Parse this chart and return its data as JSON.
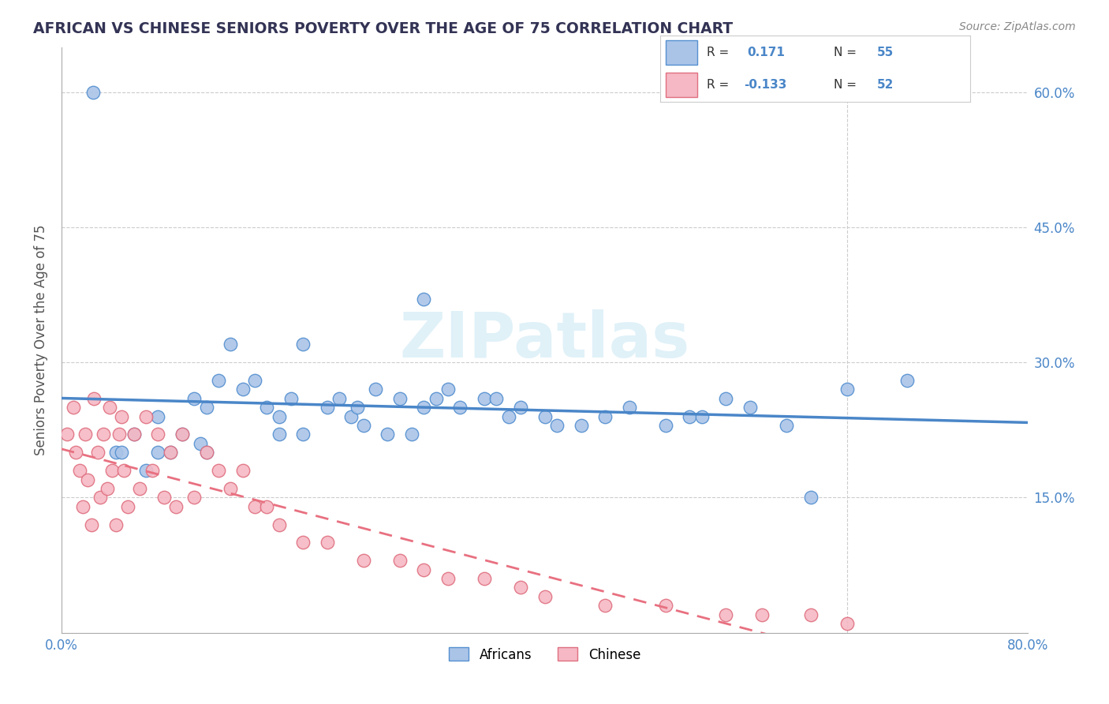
{
  "title": "AFRICAN VS CHINESE SENIORS POVERTY OVER THE AGE OF 75 CORRELATION CHART",
  "source": "Source: ZipAtlas.com",
  "ylabel": "Seniors Poverty Over the Age of 75",
  "xlim": [
    0.0,
    0.8
  ],
  "ylim": [
    0.0,
    0.65
  ],
  "grid_color": "#cccccc",
  "background_color": "#ffffff",
  "watermark": "ZIPatlas",
  "africans_color": "#aac4e8",
  "african_edge_color": "#5590d0",
  "chinese_color": "#f5b8c4",
  "chinese_edge_color": "#e07080",
  "african_line_color": "#4a86c8",
  "chinese_line_color": "#e87080",
  "african_R": 0.171,
  "african_N": 55,
  "chinese_R": -0.133,
  "chinese_N": 52,
  "africans_x": [
    0.026,
    0.045,
    0.06,
    0.07,
    0.08,
    0.09,
    0.1,
    0.11,
    0.115,
    0.12,
    0.13,
    0.14,
    0.15,
    0.16,
    0.17,
    0.18,
    0.19,
    0.2,
    0.22,
    0.23,
    0.24,
    0.245,
    0.25,
    0.26,
    0.27,
    0.28,
    0.29,
    0.3,
    0.31,
    0.32,
    0.33,
    0.35,
    0.36,
    0.37,
    0.38,
    0.4,
    0.41,
    0.43,
    0.45,
    0.47,
    0.5,
    0.52,
    0.53,
    0.55,
    0.57,
    0.6,
    0.62,
    0.65,
    0.7,
    0.3,
    0.2,
    0.18,
    0.12,
    0.08,
    0.05
  ],
  "africans_y": [
    0.6,
    0.2,
    0.22,
    0.18,
    0.24,
    0.2,
    0.22,
    0.26,
    0.21,
    0.25,
    0.28,
    0.32,
    0.27,
    0.28,
    0.25,
    0.24,
    0.26,
    0.22,
    0.25,
    0.26,
    0.24,
    0.25,
    0.23,
    0.27,
    0.22,
    0.26,
    0.22,
    0.25,
    0.26,
    0.27,
    0.25,
    0.26,
    0.26,
    0.24,
    0.25,
    0.24,
    0.23,
    0.23,
    0.24,
    0.25,
    0.23,
    0.24,
    0.24,
    0.26,
    0.25,
    0.23,
    0.15,
    0.27,
    0.28,
    0.37,
    0.32,
    0.22,
    0.2,
    0.2,
    0.2
  ],
  "chinese_x": [
    0.005,
    0.01,
    0.012,
    0.015,
    0.018,
    0.02,
    0.022,
    0.025,
    0.027,
    0.03,
    0.032,
    0.035,
    0.038,
    0.04,
    0.042,
    0.045,
    0.048,
    0.05,
    0.052,
    0.055,
    0.06,
    0.065,
    0.07,
    0.075,
    0.08,
    0.085,
    0.09,
    0.095,
    0.1,
    0.11,
    0.12,
    0.13,
    0.14,
    0.15,
    0.16,
    0.17,
    0.18,
    0.2,
    0.22,
    0.25,
    0.28,
    0.3,
    0.32,
    0.35,
    0.38,
    0.4,
    0.45,
    0.5,
    0.55,
    0.58,
    0.62,
    0.65
  ],
  "chinese_y": [
    0.22,
    0.25,
    0.2,
    0.18,
    0.14,
    0.22,
    0.17,
    0.12,
    0.26,
    0.2,
    0.15,
    0.22,
    0.16,
    0.25,
    0.18,
    0.12,
    0.22,
    0.24,
    0.18,
    0.14,
    0.22,
    0.16,
    0.24,
    0.18,
    0.22,
    0.15,
    0.2,
    0.14,
    0.22,
    0.15,
    0.2,
    0.18,
    0.16,
    0.18,
    0.14,
    0.14,
    0.12,
    0.1,
    0.1,
    0.08,
    0.08,
    0.07,
    0.06,
    0.06,
    0.05,
    0.04,
    0.03,
    0.03,
    0.02,
    0.02,
    0.02,
    0.01
  ]
}
